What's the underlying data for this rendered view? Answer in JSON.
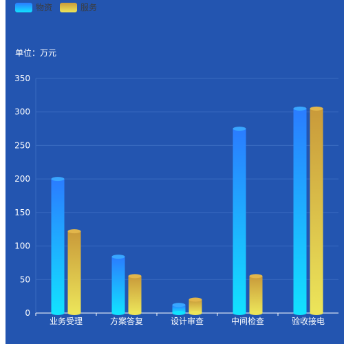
{
  "chart_data": {
    "type": "bar",
    "unit_label": "单位：万元",
    "categories": [
      "业务受理",
      "方案答复",
      "设计审查",
      "中间检查",
      "验收接电"
    ],
    "series": [
      {
        "name": "物资",
        "values": [
          200,
          84,
          12,
          275,
          305
        ],
        "color_top": "#2a7cff",
        "color_bottom": "#12e2ff",
        "cap_color": "#39a6ff"
      },
      {
        "name": "服务",
        "values": [
          122,
          55,
          20,
          55,
          305
        ],
        "color_top": "#c99a3a",
        "color_bottom": "#ece55a",
        "cap_color": "#e2b64b"
      }
    ],
    "yticks": [
      0,
      50,
      100,
      150,
      200,
      250,
      300,
      350
    ],
    "ylim": [
      0,
      350
    ],
    "grid": true,
    "legend_position": "top-left"
  },
  "colors": {
    "background": "#2355b0",
    "grid": "#3a6bc0",
    "axis": "#ffffff"
  }
}
